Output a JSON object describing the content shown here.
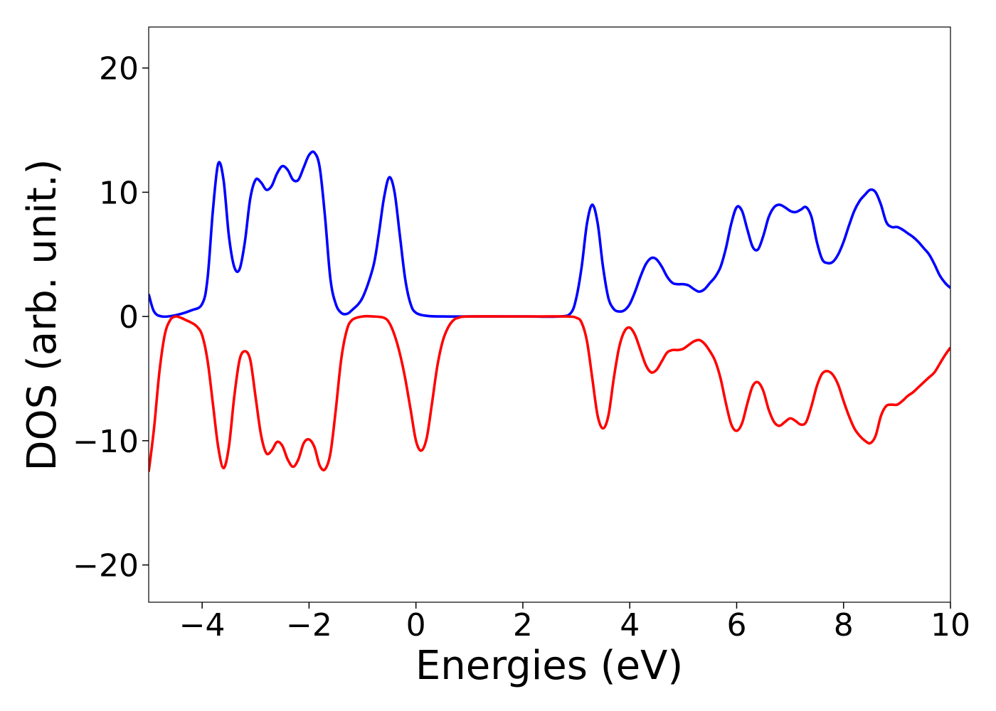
{
  "chart_data": {
    "type": "line",
    "title": "",
    "xlabel": "Energies (eV)",
    "ylabel": "DOS (arb. unit.)",
    "xlim": [
      -5,
      10
    ],
    "ylim": [
      -23,
      23.3
    ],
    "grid": false,
    "legend": "none",
    "x_ticks": [
      -4,
      -2,
      0,
      2,
      4,
      6,
      8,
      10
    ],
    "x_tick_labels": [
      "−4",
      "−2",
      "0",
      "2",
      "4",
      "6",
      "8",
      "10"
    ],
    "y_ticks": [
      -20,
      -10,
      0,
      10,
      20
    ],
    "y_tick_labels": [
      "−20",
      "−10",
      "0",
      "10",
      "20"
    ],
    "series": [
      {
        "color": "#0000ff",
        "points": [
          [
            -5.0,
            1.8
          ],
          [
            -4.9,
            0.4
          ],
          [
            -4.75,
            0.0
          ],
          [
            -4.5,
            0.1
          ],
          [
            -4.2,
            0.5
          ],
          [
            -4.0,
            1.0
          ],
          [
            -3.9,
            3.0
          ],
          [
            -3.8,
            8.5
          ],
          [
            -3.7,
            12.3
          ],
          [
            -3.6,
            11.0
          ],
          [
            -3.5,
            6.5
          ],
          [
            -3.4,
            4.0
          ],
          [
            -3.3,
            3.8
          ],
          [
            -3.2,
            6.0
          ],
          [
            -3.1,
            9.5
          ],
          [
            -3.0,
            11.0
          ],
          [
            -2.9,
            10.8
          ],
          [
            -2.8,
            10.2
          ],
          [
            -2.7,
            10.5
          ],
          [
            -2.6,
            11.5
          ],
          [
            -2.5,
            12.1
          ],
          [
            -2.4,
            11.8
          ],
          [
            -2.3,
            11.0
          ],
          [
            -2.2,
            11.0
          ],
          [
            -2.1,
            12.0
          ],
          [
            -2.0,
            13.0
          ],
          [
            -1.9,
            13.2
          ],
          [
            -1.8,
            12.0
          ],
          [
            -1.7,
            8.0
          ],
          [
            -1.6,
            3.0
          ],
          [
            -1.5,
            1.0
          ],
          [
            -1.4,
            0.3
          ],
          [
            -1.3,
            0.2
          ],
          [
            -1.2,
            0.5
          ],
          [
            -1.0,
            1.5
          ],
          [
            -0.8,
            4.0
          ],
          [
            -0.7,
            6.5
          ],
          [
            -0.6,
            9.5
          ],
          [
            -0.5,
            11.2
          ],
          [
            -0.4,
            10.0
          ],
          [
            -0.3,
            6.5
          ],
          [
            -0.2,
            3.0
          ],
          [
            -0.1,
            1.0
          ],
          [
            0.0,
            0.3
          ],
          [
            0.2,
            0.05
          ],
          [
            0.5,
            0.0
          ],
          [
            1.0,
            0.0
          ],
          [
            2.0,
            0.0
          ],
          [
            2.7,
            0.0
          ],
          [
            2.9,
            0.3
          ],
          [
            3.0,
            1.5
          ],
          [
            3.1,
            4.0
          ],
          [
            3.2,
            7.5
          ],
          [
            3.3,
            9.0
          ],
          [
            3.4,
            7.5
          ],
          [
            3.5,
            4.0
          ],
          [
            3.6,
            1.5
          ],
          [
            3.7,
            0.6
          ],
          [
            3.8,
            0.4
          ],
          [
            3.9,
            0.5
          ],
          [
            4.0,
            1.0
          ],
          [
            4.1,
            2.0
          ],
          [
            4.2,
            3.2
          ],
          [
            4.3,
            4.2
          ],
          [
            4.4,
            4.7
          ],
          [
            4.5,
            4.6
          ],
          [
            4.6,
            4.0
          ],
          [
            4.7,
            3.2
          ],
          [
            4.8,
            2.7
          ],
          [
            4.9,
            2.6
          ],
          [
            5.0,
            2.6
          ],
          [
            5.1,
            2.5
          ],
          [
            5.2,
            2.2
          ],
          [
            5.3,
            2.0
          ],
          [
            5.4,
            2.2
          ],
          [
            5.5,
            2.7
          ],
          [
            5.6,
            3.2
          ],
          [
            5.7,
            4.0
          ],
          [
            5.8,
            5.5
          ],
          [
            5.9,
            7.5
          ],
          [
            6.0,
            8.8
          ],
          [
            6.1,
            8.5
          ],
          [
            6.2,
            7.0
          ],
          [
            6.3,
            5.6
          ],
          [
            6.4,
            5.4
          ],
          [
            6.5,
            6.5
          ],
          [
            6.6,
            8.0
          ],
          [
            6.7,
            8.8
          ],
          [
            6.8,
            9.0
          ],
          [
            6.9,
            8.8
          ],
          [
            7.0,
            8.5
          ],
          [
            7.1,
            8.4
          ],
          [
            7.2,
            8.6
          ],
          [
            7.3,
            8.8
          ],
          [
            7.4,
            8.0
          ],
          [
            7.5,
            6.0
          ],
          [
            7.6,
            4.6
          ],
          [
            7.7,
            4.3
          ],
          [
            7.8,
            4.4
          ],
          [
            7.9,
            5.0
          ],
          [
            8.0,
            6.0
          ],
          [
            8.1,
            7.3
          ],
          [
            8.2,
            8.5
          ],
          [
            8.3,
            9.3
          ],
          [
            8.4,
            9.8
          ],
          [
            8.5,
            10.2
          ],
          [
            8.6,
            10.0
          ],
          [
            8.7,
            9.0
          ],
          [
            8.8,
            7.6
          ],
          [
            8.9,
            7.2
          ],
          [
            9.0,
            7.2
          ],
          [
            9.1,
            7.0
          ],
          [
            9.2,
            6.7
          ],
          [
            9.3,
            6.4
          ],
          [
            9.4,
            6.0
          ],
          [
            9.5,
            5.5
          ],
          [
            9.6,
            5.0
          ],
          [
            9.7,
            4.2
          ],
          [
            9.8,
            3.3
          ],
          [
            9.9,
            2.7
          ],
          [
            10.0,
            2.3
          ]
        ]
      },
      {
        "color": "#ff0000",
        "points": [
          [
            -5.0,
            -12.5
          ],
          [
            -4.9,
            -9.0
          ],
          [
            -4.8,
            -4.5
          ],
          [
            -4.7,
            -1.5
          ],
          [
            -4.6,
            -0.3
          ],
          [
            -4.5,
            0.0
          ],
          [
            -4.4,
            -0.1
          ],
          [
            -4.3,
            -0.3
          ],
          [
            -4.2,
            -0.5
          ],
          [
            -4.1,
            -0.8
          ],
          [
            -4.0,
            -1.5
          ],
          [
            -3.9,
            -3.5
          ],
          [
            -3.8,
            -7.0
          ],
          [
            -3.7,
            -10.5
          ],
          [
            -3.6,
            -12.2
          ],
          [
            -3.5,
            -10.5
          ],
          [
            -3.4,
            -6.5
          ],
          [
            -3.3,
            -3.5
          ],
          [
            -3.2,
            -2.8
          ],
          [
            -3.1,
            -3.5
          ],
          [
            -3.0,
            -6.5
          ],
          [
            -2.9,
            -9.5
          ],
          [
            -2.8,
            -11.0
          ],
          [
            -2.7,
            -10.8
          ],
          [
            -2.6,
            -10.1
          ],
          [
            -2.5,
            -10.4
          ],
          [
            -2.4,
            -11.5
          ],
          [
            -2.3,
            -12.1
          ],
          [
            -2.2,
            -11.5
          ],
          [
            -2.1,
            -10.2
          ],
          [
            -2.0,
            -9.9
          ],
          [
            -1.9,
            -10.5
          ],
          [
            -1.8,
            -12.0
          ],
          [
            -1.7,
            -12.3
          ],
          [
            -1.6,
            -11.0
          ],
          [
            -1.5,
            -7.5
          ],
          [
            -1.4,
            -3.5
          ],
          [
            -1.3,
            -1.2
          ],
          [
            -1.2,
            -0.3
          ],
          [
            -1.0,
            0.0
          ],
          [
            -0.8,
            0.0
          ],
          [
            -0.6,
            -0.1
          ],
          [
            -0.5,
            -0.5
          ],
          [
            -0.4,
            -1.5
          ],
          [
            -0.3,
            -3.0
          ],
          [
            -0.2,
            -5.0
          ],
          [
            -0.1,
            -7.5
          ],
          [
            0.0,
            -10.0
          ],
          [
            0.1,
            -10.8
          ],
          [
            0.2,
            -9.8
          ],
          [
            0.3,
            -7.0
          ],
          [
            0.4,
            -4.0
          ],
          [
            0.5,
            -2.0
          ],
          [
            0.6,
            -0.9
          ],
          [
            0.7,
            -0.3
          ],
          [
            0.8,
            -0.1
          ],
          [
            1.0,
            0.0
          ],
          [
            2.0,
            0.0
          ],
          [
            2.8,
            0.0
          ],
          [
            3.0,
            -0.1
          ],
          [
            3.1,
            -0.5
          ],
          [
            3.2,
            -2.0
          ],
          [
            3.3,
            -5.0
          ],
          [
            3.4,
            -8.0
          ],
          [
            3.5,
            -9.0
          ],
          [
            3.6,
            -8.0
          ],
          [
            3.7,
            -5.0
          ],
          [
            3.8,
            -2.5
          ],
          [
            3.9,
            -1.2
          ],
          [
            4.0,
            -0.9
          ],
          [
            4.1,
            -1.5
          ],
          [
            4.2,
            -2.7
          ],
          [
            4.3,
            -3.9
          ],
          [
            4.4,
            -4.5
          ],
          [
            4.5,
            -4.3
          ],
          [
            4.6,
            -3.6
          ],
          [
            4.7,
            -2.9
          ],
          [
            4.8,
            -2.7
          ],
          [
            4.9,
            -2.7
          ],
          [
            5.0,
            -2.6
          ],
          [
            5.1,
            -2.3
          ],
          [
            5.2,
            -2.0
          ],
          [
            5.3,
            -1.9
          ],
          [
            5.4,
            -2.2
          ],
          [
            5.5,
            -2.8
          ],
          [
            5.6,
            -3.6
          ],
          [
            5.7,
            -5.0
          ],
          [
            5.8,
            -7.0
          ],
          [
            5.9,
            -8.7
          ],
          [
            6.0,
            -9.2
          ],
          [
            6.1,
            -8.6
          ],
          [
            6.2,
            -7.0
          ],
          [
            6.3,
            -5.6
          ],
          [
            6.4,
            -5.3
          ],
          [
            6.5,
            -6.0
          ],
          [
            6.6,
            -7.5
          ],
          [
            6.7,
            -8.5
          ],
          [
            6.8,
            -8.8
          ],
          [
            6.9,
            -8.5
          ],
          [
            7.0,
            -8.2
          ],
          [
            7.1,
            -8.4
          ],
          [
            7.2,
            -8.7
          ],
          [
            7.3,
            -8.5
          ],
          [
            7.4,
            -7.2
          ],
          [
            7.5,
            -5.6
          ],
          [
            7.6,
            -4.6
          ],
          [
            7.7,
            -4.4
          ],
          [
            7.8,
            -4.7
          ],
          [
            7.9,
            -5.5
          ],
          [
            8.0,
            -6.8
          ],
          [
            8.1,
            -8.0
          ],
          [
            8.2,
            -9.0
          ],
          [
            8.3,
            -9.6
          ],
          [
            8.4,
            -10.0
          ],
          [
            8.5,
            -10.2
          ],
          [
            8.6,
            -9.6
          ],
          [
            8.7,
            -8.0
          ],
          [
            8.8,
            -7.2
          ],
          [
            8.9,
            -7.1
          ],
          [
            9.0,
            -7.1
          ],
          [
            9.1,
            -6.8
          ],
          [
            9.2,
            -6.4
          ],
          [
            9.3,
            -6.1
          ],
          [
            9.4,
            -5.7
          ],
          [
            9.5,
            -5.3
          ],
          [
            9.6,
            -4.9
          ],
          [
            9.7,
            -4.5
          ],
          [
            9.8,
            -3.8
          ],
          [
            9.9,
            -3.1
          ],
          [
            10.0,
            -2.5
          ]
        ]
      }
    ]
  }
}
